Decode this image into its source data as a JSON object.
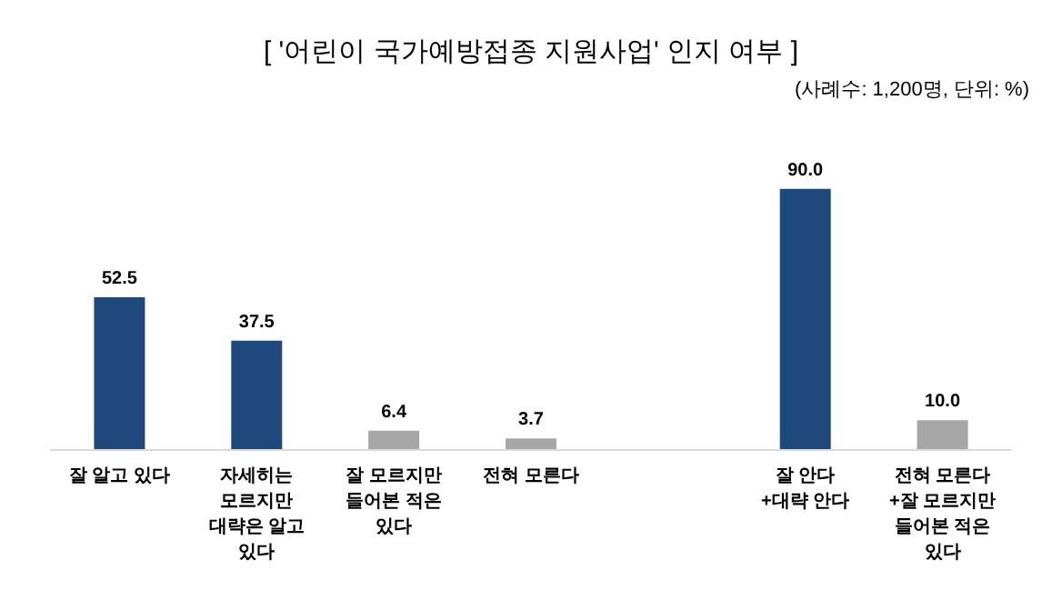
{
  "chart_data": {
    "type": "bar",
    "title": "[ '어린이 국가예방접종 지원사업' 인지 여부 ]",
    "annotations": [
      "(사례수: 1,200명, 단위: %)"
    ],
    "categories": [
      "잘 알고 있다",
      "자세히는\n모르지만\n대략은 알고\n있다",
      "잘 모르지만\n들어본 적은\n있다",
      "전혀 모른다",
      null,
      "잘 안다\n+대략 안다",
      "전혀 모른다\n+잘 모르지만\n들어본 적은\n있다"
    ],
    "values": [
      52.5,
      37.5,
      6.4,
      3.7,
      null,
      90.0,
      10.0
    ],
    "value_labels": [
      "52.5",
      "37.5",
      "6.4",
      "3.7",
      null,
      "90.0",
      "10.0"
    ],
    "colors": [
      "#1f497d",
      "#1f497d",
      "#a6a6a6",
      "#a6a6a6",
      null,
      "#1f497d",
      "#a6a6a6"
    ]
  }
}
